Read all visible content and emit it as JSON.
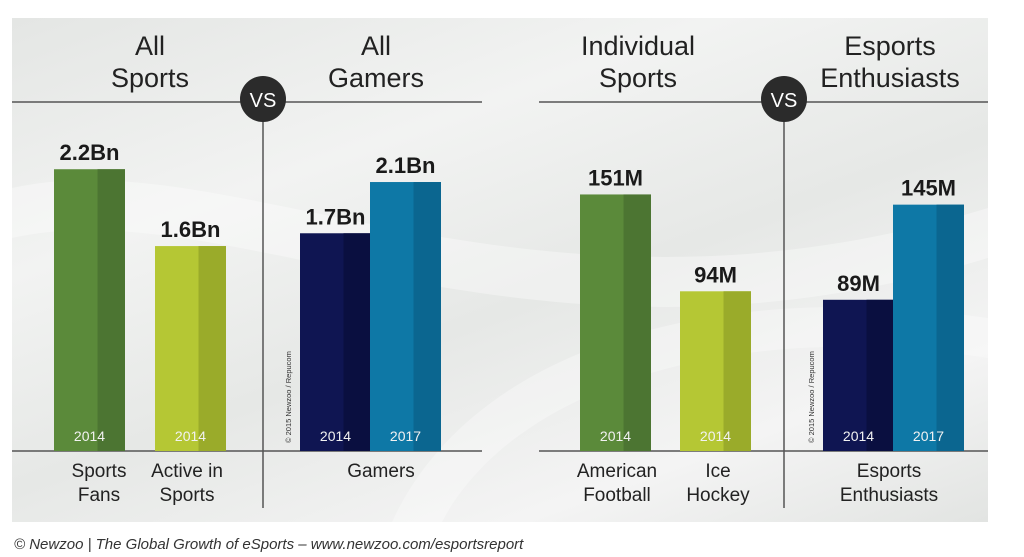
{
  "colors": {
    "green": "#5b8a3a",
    "green_dark": "#4c7532",
    "lime": "#b5c734",
    "lime_dark": "#9aab2a",
    "navy": "#0f1552",
    "navy_dark": "#0a0f40",
    "teal": "#0e78a6",
    "teal_dark": "#0b6690",
    "vs_circle": "#2b2b2b",
    "divider": "#555555"
  },
  "vs_labels": [
    "VS",
    "VS"
  ],
  "caption": "© Newzoo | The Global Growth of eSports – www.newzoo.com/esportsreport",
  "chart_data": [
    {
      "type": "bar",
      "title_lines": [
        "All",
        "Sports"
      ],
      "categories": [
        "Sports Fans",
        "Active in Sports"
      ],
      "category_lines": [
        [
          "Sports",
          "Fans"
        ],
        [
          "Active in",
          "Sports"
        ]
      ],
      "bars": [
        {
          "value": 2.2,
          "label": "2.2Bn",
          "year": "2014",
          "color": "green"
        },
        {
          "value": 1.6,
          "label": "1.6Bn",
          "year": "2014",
          "color": "lime"
        }
      ],
      "unit": "Bn",
      "ylim": [
        0,
        2.6
      ]
    },
    {
      "type": "bar",
      "title_lines": [
        "All",
        "Gamers"
      ],
      "categories": [
        "Gamers"
      ],
      "category_lines": [
        [
          "Gamers"
        ]
      ],
      "bars": [
        {
          "value": 1.7,
          "label": "1.7Bn",
          "year": "2014",
          "color": "navy"
        },
        {
          "value": 2.1,
          "label": "2.1Bn",
          "year": "2017",
          "color": "teal"
        }
      ],
      "unit": "Bn",
      "ylim": [
        0,
        2.6
      ],
      "copyright": "© 2015 Newzoo / Repucom"
    },
    {
      "type": "bar",
      "title_lines": [
        "Individual",
        "Sports"
      ],
      "categories": [
        "American Football",
        "Ice Hockey"
      ],
      "category_lines": [
        [
          "American",
          "Football"
        ],
        [
          "Ice",
          "Hockey"
        ]
      ],
      "bars": [
        {
          "value": 151,
          "label": "151M",
          "year": "2014",
          "color": "green"
        },
        {
          "value": 94,
          "label": "94M",
          "year": "2014",
          "color": "lime"
        }
      ],
      "unit": "M",
      "ylim": [
        0,
        196
      ]
    },
    {
      "type": "bar",
      "title_lines": [
        "Esports",
        "Enthusiasts"
      ],
      "categories": [
        "Esports Enthusiasts"
      ],
      "category_lines": [
        [
          "Esports",
          "Enthusiasts"
        ]
      ],
      "bars": [
        {
          "value": 89,
          "label": "89M",
          "year": "2014",
          "color": "navy"
        },
        {
          "value": 145,
          "label": "145M",
          "year": "2017",
          "color": "teal"
        }
      ],
      "unit": "M",
      "ylim": [
        0,
        196
      ],
      "copyright": "© 2015 Newzoo / Repucom"
    }
  ]
}
